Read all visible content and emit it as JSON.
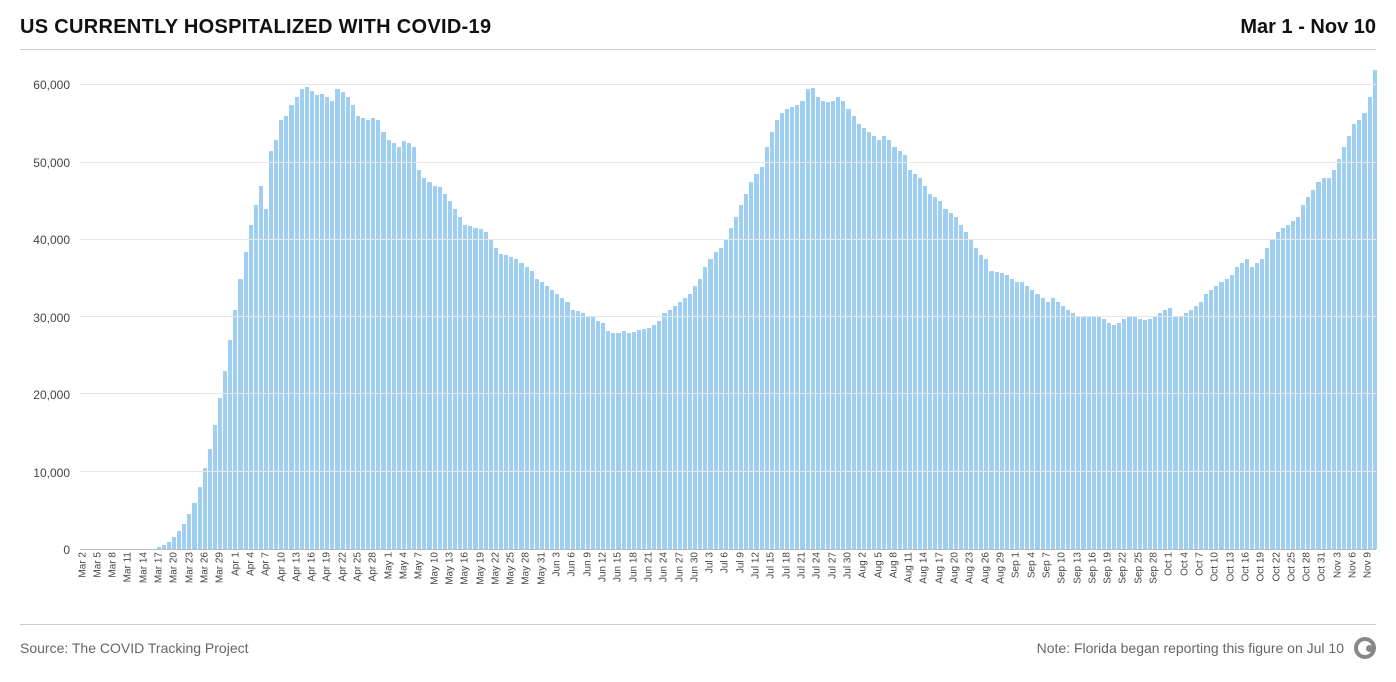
{
  "header": {
    "title": "US CURRENTLY HOSPITALIZED WITH COVID-19",
    "date_range": "Mar 1 - Nov 10"
  },
  "footer": {
    "source": "Source: The COVID Tracking Project",
    "note": "Note: Florida began reporting this figure on Jul 10"
  },
  "chart": {
    "type": "bar",
    "bar_color": "#9ecff2",
    "background_color": "#ffffff",
    "grid_color": "#e6e6e6",
    "axis_color": "#bbbbbb",
    "text_color": "#444444",
    "title_fontsize": 20,
    "tick_fontsize": 12,
    "x_tick_fontsize": 10,
    "ylim": [
      0,
      62000
    ],
    "y_ticks": [
      0,
      10000,
      20000,
      30000,
      40000,
      50000,
      60000
    ],
    "y_tick_labels": [
      "0",
      "10,000",
      "20,000",
      "30,000",
      "40,000",
      "50,000",
      "60,000"
    ],
    "x_tick_step": 3,
    "data": [
      {
        "date": "Mar 2",
        "value": 0
      },
      {
        "date": "Mar 3",
        "value": 0
      },
      {
        "date": "Mar 4",
        "value": 0
      },
      {
        "date": "Mar 5",
        "value": 0
      },
      {
        "date": "Mar 6",
        "value": 0
      },
      {
        "date": "Mar 7",
        "value": 0
      },
      {
        "date": "Mar 8",
        "value": 0
      },
      {
        "date": "Mar 9",
        "value": 0
      },
      {
        "date": "Mar 10",
        "value": 0
      },
      {
        "date": "Mar 11",
        "value": 0
      },
      {
        "date": "Mar 12",
        "value": 0
      },
      {
        "date": "Mar 13",
        "value": 0
      },
      {
        "date": "Mar 14",
        "value": 0
      },
      {
        "date": "Mar 15",
        "value": 0
      },
      {
        "date": "Mar 16",
        "value": 0
      },
      {
        "date": "Mar 17",
        "value": 200
      },
      {
        "date": "Mar 18",
        "value": 500
      },
      {
        "date": "Mar 19",
        "value": 900
      },
      {
        "date": "Mar 20",
        "value": 1500
      },
      {
        "date": "Mar 21",
        "value": 2300
      },
      {
        "date": "Mar 22",
        "value": 3300
      },
      {
        "date": "Mar 23",
        "value": 4500
      },
      {
        "date": "Mar 24",
        "value": 6000
      },
      {
        "date": "Mar 25",
        "value": 8000
      },
      {
        "date": "Mar 26",
        "value": 10500
      },
      {
        "date": "Mar 27",
        "value": 13000
      },
      {
        "date": "Mar 28",
        "value": 16000
      },
      {
        "date": "Mar 29",
        "value": 19500
      },
      {
        "date": "Mar 30",
        "value": 23000
      },
      {
        "date": "Mar 31",
        "value": 27000
      },
      {
        "date": "Apr 1",
        "value": 31000
      },
      {
        "date": "Apr 2",
        "value": 35000
      },
      {
        "date": "Apr 3",
        "value": 38500
      },
      {
        "date": "Apr 4",
        "value": 42000
      },
      {
        "date": "Apr 5",
        "value": 44500
      },
      {
        "date": "Apr 6",
        "value": 47000
      },
      {
        "date": "Apr 7",
        "value": 44000
      },
      {
        "date": "Apr 8",
        "value": 51500
      },
      {
        "date": "Apr 9",
        "value": 53000
      },
      {
        "date": "Apr 10",
        "value": 55500
      },
      {
        "date": "Apr 11",
        "value": 56000
      },
      {
        "date": "Apr 12",
        "value": 57500
      },
      {
        "date": "Apr 13",
        "value": 58500
      },
      {
        "date": "Apr 14",
        "value": 59500
      },
      {
        "date": "Apr 15",
        "value": 59800
      },
      {
        "date": "Apr 16",
        "value": 59300
      },
      {
        "date": "Apr 17",
        "value": 58800
      },
      {
        "date": "Apr 18",
        "value": 58900
      },
      {
        "date": "Apr 19",
        "value": 58500
      },
      {
        "date": "Apr 20",
        "value": 58000
      },
      {
        "date": "Apr 21",
        "value": 59500
      },
      {
        "date": "Apr 22",
        "value": 59200
      },
      {
        "date": "Apr 23",
        "value": 58500
      },
      {
        "date": "Apr 24",
        "value": 57500
      },
      {
        "date": "Apr 25",
        "value": 56000
      },
      {
        "date": "Apr 26",
        "value": 55800
      },
      {
        "date": "Apr 27",
        "value": 55500
      },
      {
        "date": "Apr 28",
        "value": 55800
      },
      {
        "date": "Apr 29",
        "value": 55500
      },
      {
        "date": "Apr 30",
        "value": 54000
      },
      {
        "date": "May 1",
        "value": 53000
      },
      {
        "date": "May 2",
        "value": 52500
      },
      {
        "date": "May 3",
        "value": 52000
      },
      {
        "date": "May 4",
        "value": 52800
      },
      {
        "date": "May 5",
        "value": 52500
      },
      {
        "date": "May 6",
        "value": 52000
      },
      {
        "date": "May 7",
        "value": 49000
      },
      {
        "date": "May 8",
        "value": 48000
      },
      {
        "date": "May 9",
        "value": 47500
      },
      {
        "date": "May 10",
        "value": 47000
      },
      {
        "date": "May 11",
        "value": 46800
      },
      {
        "date": "May 12",
        "value": 46000
      },
      {
        "date": "May 13",
        "value": 45000
      },
      {
        "date": "May 14",
        "value": 44000
      },
      {
        "date": "May 15",
        "value": 43000
      },
      {
        "date": "May 16",
        "value": 42000
      },
      {
        "date": "May 17",
        "value": 41800
      },
      {
        "date": "May 18",
        "value": 41600
      },
      {
        "date": "May 19",
        "value": 41400
      },
      {
        "date": "May 20",
        "value": 41000
      },
      {
        "date": "May 21",
        "value": 40000
      },
      {
        "date": "May 22",
        "value": 39000
      },
      {
        "date": "May 23",
        "value": 38200
      },
      {
        "date": "May 24",
        "value": 38000
      },
      {
        "date": "May 25",
        "value": 37800
      },
      {
        "date": "May 26",
        "value": 37600
      },
      {
        "date": "May 27",
        "value": 37000
      },
      {
        "date": "May 28",
        "value": 36500
      },
      {
        "date": "May 29",
        "value": 36000
      },
      {
        "date": "May 30",
        "value": 35000
      },
      {
        "date": "May 31",
        "value": 34500
      },
      {
        "date": "Jun 1",
        "value": 34000
      },
      {
        "date": "Jun 2",
        "value": 33500
      },
      {
        "date": "Jun 3",
        "value": 33000
      },
      {
        "date": "Jun 4",
        "value": 32500
      },
      {
        "date": "Jun 5",
        "value": 32000
      },
      {
        "date": "Jun 6",
        "value": 31000
      },
      {
        "date": "Jun 7",
        "value": 30800
      },
      {
        "date": "Jun 8",
        "value": 30500
      },
      {
        "date": "Jun 9",
        "value": 30200
      },
      {
        "date": "Jun 10",
        "value": 30000
      },
      {
        "date": "Jun 11",
        "value": 29500
      },
      {
        "date": "Jun 12",
        "value": 29200
      },
      {
        "date": "Jun 13",
        "value": 28200
      },
      {
        "date": "Jun 14",
        "value": 28000
      },
      {
        "date": "Jun 15",
        "value": 27900
      },
      {
        "date": "Jun 16",
        "value": 28200
      },
      {
        "date": "Jun 17",
        "value": 28000
      },
      {
        "date": "Jun 18",
        "value": 28100
      },
      {
        "date": "Jun 19",
        "value": 28300
      },
      {
        "date": "Jun 20",
        "value": 28500
      },
      {
        "date": "Jun 21",
        "value": 28600
      },
      {
        "date": "Jun 22",
        "value": 29000
      },
      {
        "date": "Jun 23",
        "value": 29500
      },
      {
        "date": "Jun 24",
        "value": 30500
      },
      {
        "date": "Jun 25",
        "value": 31000
      },
      {
        "date": "Jun 26",
        "value": 31500
      },
      {
        "date": "Jun 27",
        "value": 32000
      },
      {
        "date": "Jun 28",
        "value": 32500
      },
      {
        "date": "Jun 29",
        "value": 33000
      },
      {
        "date": "Jun 30",
        "value": 34000
      },
      {
        "date": "Jul 1",
        "value": 35000
      },
      {
        "date": "Jul 2",
        "value": 36500
      },
      {
        "date": "Jul 3",
        "value": 37500
      },
      {
        "date": "Jul 4",
        "value": 38500
      },
      {
        "date": "Jul 5",
        "value": 39000
      },
      {
        "date": "Jul 6",
        "value": 40000
      },
      {
        "date": "Jul 7",
        "value": 41500
      },
      {
        "date": "Jul 8",
        "value": 43000
      },
      {
        "date": "Jul 9",
        "value": 44500
      },
      {
        "date": "Jul 10",
        "value": 46000
      },
      {
        "date": "Jul 11",
        "value": 47500
      },
      {
        "date": "Jul 12",
        "value": 48500
      },
      {
        "date": "Jul 13",
        "value": 49500
      },
      {
        "date": "Jul 14",
        "value": 52000
      },
      {
        "date": "Jul 15",
        "value": 54000
      },
      {
        "date": "Jul 16",
        "value": 55500
      },
      {
        "date": "Jul 17",
        "value": 56500
      },
      {
        "date": "Jul 18",
        "value": 57000
      },
      {
        "date": "Jul 19",
        "value": 57200
      },
      {
        "date": "Jul 20",
        "value": 57500
      },
      {
        "date": "Jul 21",
        "value": 58000
      },
      {
        "date": "Jul 22",
        "value": 59500
      },
      {
        "date": "Jul 23",
        "value": 59700
      },
      {
        "date": "Jul 24",
        "value": 58500
      },
      {
        "date": "Jul 25",
        "value": 58000
      },
      {
        "date": "Jul 26",
        "value": 57800
      },
      {
        "date": "Jul 27",
        "value": 58000
      },
      {
        "date": "Jul 28",
        "value": 58500
      },
      {
        "date": "Jul 29",
        "value": 58000
      },
      {
        "date": "Jul 30",
        "value": 57000
      },
      {
        "date": "Jul 31",
        "value": 56000
      },
      {
        "date": "Aug 1",
        "value": 55000
      },
      {
        "date": "Aug 2",
        "value": 54500
      },
      {
        "date": "Aug 3",
        "value": 54000
      },
      {
        "date": "Aug 4",
        "value": 53500
      },
      {
        "date": "Aug 5",
        "value": 53000
      },
      {
        "date": "Aug 6",
        "value": 53500
      },
      {
        "date": "Aug 7",
        "value": 53000
      },
      {
        "date": "Aug 8",
        "value": 52000
      },
      {
        "date": "Aug 9",
        "value": 51500
      },
      {
        "date": "Aug 10",
        "value": 51000
      },
      {
        "date": "Aug 11",
        "value": 49000
      },
      {
        "date": "Aug 12",
        "value": 48500
      },
      {
        "date": "Aug 13",
        "value": 48000
      },
      {
        "date": "Aug 14",
        "value": 47000
      },
      {
        "date": "Aug 15",
        "value": 46000
      },
      {
        "date": "Aug 16",
        "value": 45500
      },
      {
        "date": "Aug 17",
        "value": 45000
      },
      {
        "date": "Aug 18",
        "value": 44000
      },
      {
        "date": "Aug 19",
        "value": 43500
      },
      {
        "date": "Aug 20",
        "value": 43000
      },
      {
        "date": "Aug 21",
        "value": 42000
      },
      {
        "date": "Aug 22",
        "value": 41000
      },
      {
        "date": "Aug 23",
        "value": 40000
      },
      {
        "date": "Aug 24",
        "value": 39000
      },
      {
        "date": "Aug 25",
        "value": 38000
      },
      {
        "date": "Aug 26",
        "value": 37500
      },
      {
        "date": "Aug 27",
        "value": 36000
      },
      {
        "date": "Aug 28",
        "value": 35800
      },
      {
        "date": "Aug 29",
        "value": 35700
      },
      {
        "date": "Aug 30",
        "value": 35500
      },
      {
        "date": "Aug 31",
        "value": 35000
      },
      {
        "date": "Sep 1",
        "value": 34500
      },
      {
        "date": "Sep 2",
        "value": 34500
      },
      {
        "date": "Sep 3",
        "value": 34000
      },
      {
        "date": "Sep 4",
        "value": 33500
      },
      {
        "date": "Sep 5",
        "value": 33000
      },
      {
        "date": "Sep 6",
        "value": 32500
      },
      {
        "date": "Sep 7",
        "value": 32000
      },
      {
        "date": "Sep 8",
        "value": 32500
      },
      {
        "date": "Sep 9",
        "value": 32000
      },
      {
        "date": "Sep 10",
        "value": 31500
      },
      {
        "date": "Sep 11",
        "value": 31000
      },
      {
        "date": "Sep 12",
        "value": 30500
      },
      {
        "date": "Sep 13",
        "value": 30200
      },
      {
        "date": "Sep 14",
        "value": 30100
      },
      {
        "date": "Sep 15",
        "value": 30000
      },
      {
        "date": "Sep 16",
        "value": 30200
      },
      {
        "date": "Sep 17",
        "value": 30000
      },
      {
        "date": "Sep 18",
        "value": 29800
      },
      {
        "date": "Sep 19",
        "value": 29200
      },
      {
        "date": "Sep 20",
        "value": 29000
      },
      {
        "date": "Sep 21",
        "value": 29200
      },
      {
        "date": "Sep 22",
        "value": 29800
      },
      {
        "date": "Sep 23",
        "value": 30000
      },
      {
        "date": "Sep 24",
        "value": 30200
      },
      {
        "date": "Sep 25",
        "value": 29800
      },
      {
        "date": "Sep 26",
        "value": 29600
      },
      {
        "date": "Sep 27",
        "value": 29800
      },
      {
        "date": "Sep 28",
        "value": 30000
      },
      {
        "date": "Sep 29",
        "value": 30500
      },
      {
        "date": "Sep 30",
        "value": 31000
      },
      {
        "date": "Oct 1",
        "value": 31200
      },
      {
        "date": "Oct 2",
        "value": 30200
      },
      {
        "date": "Oct 3",
        "value": 30000
      },
      {
        "date": "Oct 4",
        "value": 30500
      },
      {
        "date": "Oct 5",
        "value": 31000
      },
      {
        "date": "Oct 6",
        "value": 31500
      },
      {
        "date": "Oct 7",
        "value": 32000
      },
      {
        "date": "Oct 8",
        "value": 33000
      },
      {
        "date": "Oct 9",
        "value": 33500
      },
      {
        "date": "Oct 10",
        "value": 34000
      },
      {
        "date": "Oct 11",
        "value": 34500
      },
      {
        "date": "Oct 12",
        "value": 35000
      },
      {
        "date": "Oct 13",
        "value": 35500
      },
      {
        "date": "Oct 14",
        "value": 36500
      },
      {
        "date": "Oct 15",
        "value": 37000
      },
      {
        "date": "Oct 16",
        "value": 37500
      },
      {
        "date": "Oct 17",
        "value": 36500
      },
      {
        "date": "Oct 18",
        "value": 37000
      },
      {
        "date": "Oct 19",
        "value": 37500
      },
      {
        "date": "Oct 20",
        "value": 39000
      },
      {
        "date": "Oct 21",
        "value": 40000
      },
      {
        "date": "Oct 22",
        "value": 41000
      },
      {
        "date": "Oct 23",
        "value": 41500
      },
      {
        "date": "Oct 24",
        "value": 42000
      },
      {
        "date": "Oct 25",
        "value": 42500
      },
      {
        "date": "Oct 26",
        "value": 43000
      },
      {
        "date": "Oct 27",
        "value": 44500
      },
      {
        "date": "Oct 28",
        "value": 45500
      },
      {
        "date": "Oct 29",
        "value": 46500
      },
      {
        "date": "Oct 30",
        "value": 47500
      },
      {
        "date": "Oct 31",
        "value": 48000
      },
      {
        "date": "Nov 1",
        "value": 48000
      },
      {
        "date": "Nov 2",
        "value": 49000
      },
      {
        "date": "Nov 3",
        "value": 50500
      },
      {
        "date": "Nov 4",
        "value": 52000
      },
      {
        "date": "Nov 5",
        "value": 53500
      },
      {
        "date": "Nov 6",
        "value": 55000
      },
      {
        "date": "Nov 7",
        "value": 55500
      },
      {
        "date": "Nov 8",
        "value": 56500
      },
      {
        "date": "Nov 9",
        "value": 58500
      },
      {
        "date": "Nov 10",
        "value": 62000
      }
    ]
  }
}
